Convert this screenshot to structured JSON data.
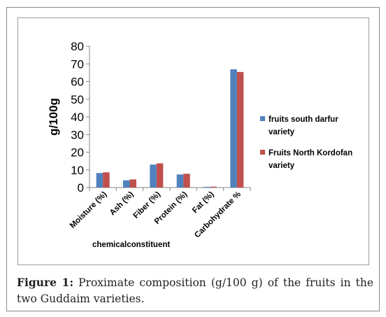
{
  "chart_data": {
    "type": "bar",
    "categories": [
      "Moisture (%)",
      "Ash  (%)",
      "Fiber (%)",
      "Protein (%)",
      "Fat (%)",
      "Carbohydrate %"
    ],
    "series": [
      {
        "name": "fruits south darfur variety",
        "values": [
          8.2,
          4.1,
          13.0,
          7.4,
          0.4,
          66.9
        ]
      },
      {
        "name": "Fruits North Kordofan variety",
        "values": [
          8.6,
          4.6,
          13.7,
          7.8,
          0.5,
          65.4
        ]
      }
    ],
    "title": "",
    "xlabel": "chemicalconstituent",
    "ylabel": "g/100g",
    "ylim": [
      0,
      80
    ],
    "yticks": [
      0,
      10,
      20,
      30,
      40,
      50,
      60,
      70,
      80
    ],
    "grid": false,
    "legend_position": "right",
    "colors": [
      "#4f81bd",
      "#c0504d"
    ]
  },
  "caption": {
    "label": "Figure 1:",
    "text": " Proximate composition (g/100 g) of the fruits in the two Guddaim varieties."
  }
}
